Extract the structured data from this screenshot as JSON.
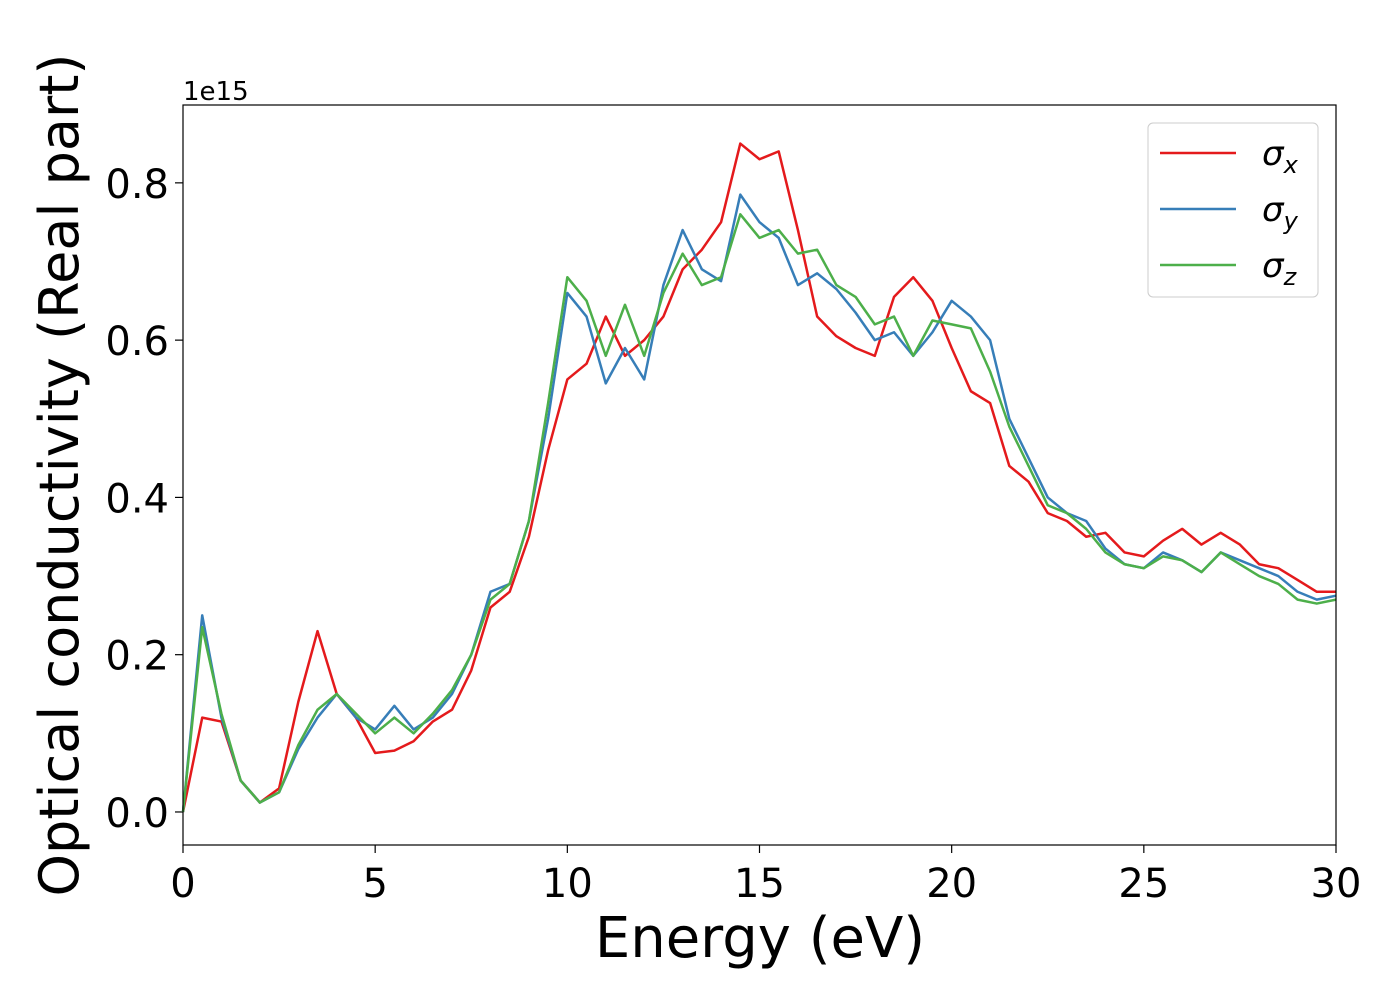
{
  "chart_data": {
    "type": "line",
    "xlabel": "Energy (eV)",
    "ylabel": "Optical conductivity (Real part)",
    "y_offset_label": "1e15",
    "xlim": [
      0,
      30
    ],
    "ylim": [
      -0.042,
      0.899
    ],
    "xticks": [
      0,
      5,
      10,
      15,
      20,
      25,
      30
    ],
    "yticks": [
      {
        "value": 0,
        "label": "0.0"
      },
      0.2,
      0.4,
      0.6,
      0.8
    ],
    "legend": "upper right",
    "x": [
      0,
      0.5,
      1,
      1.5,
      2,
      2.5,
      3,
      3.5,
      4,
      4.5,
      5,
      5.5,
      6,
      6.5,
      7,
      7.5,
      8,
      8.5,
      9,
      9.5,
      10,
      10.5,
      11,
      11.5,
      12,
      12.5,
      13,
      13.5,
      14,
      14.5,
      15,
      15.5,
      16,
      16.5,
      17,
      17.5,
      18,
      18.5,
      19,
      19.5,
      20,
      20.5,
      21,
      21.5,
      22,
      22.5,
      23,
      23.5,
      24,
      24.5,
      25,
      25.5,
      26,
      26.5,
      27,
      27.5,
      28,
      28.5,
      29,
      29.5,
      30
    ],
    "series": [
      {
        "name": "σx",
        "color": "#e41a1c",
        "values": [
          0,
          0.12,
          0.115,
          0.04,
          0.012,
          0.03,
          0.14,
          0.23,
          0.15,
          0.12,
          0.075,
          0.078,
          0.09,
          0.115,
          0.13,
          0.18,
          0.26,
          0.28,
          0.35,
          0.46,
          0.55,
          0.57,
          0.63,
          0.58,
          0.6,
          0.63,
          0.69,
          0.715,
          0.75,
          0.85,
          0.83,
          0.84,
          0.74,
          0.63,
          0.605,
          0.59,
          0.58,
          0.655,
          0.68,
          0.65,
          0.59,
          0.535,
          0.52,
          0.44,
          0.42,
          0.38,
          0.37,
          0.35,
          0.355,
          0.33,
          0.325,
          0.345,
          0.36,
          0.34,
          0.355,
          0.34,
          0.315,
          0.31,
          0.295,
          0.28,
          0.28
        ]
      },
      {
        "name": "σy",
        "color": "#377eb8",
        "values": [
          0,
          0.25,
          0.12,
          0.04,
          0.012,
          0.025,
          0.08,
          0.12,
          0.15,
          0.12,
          0.105,
          0.135,
          0.105,
          0.12,
          0.15,
          0.2,
          0.28,
          0.29,
          0.37,
          0.5,
          0.66,
          0.63,
          0.545,
          0.59,
          0.55,
          0.67,
          0.74,
          0.69,
          0.675,
          0.785,
          0.75,
          0.73,
          0.67,
          0.685,
          0.665,
          0.635,
          0.6,
          0.61,
          0.58,
          0.61,
          0.65,
          0.63,
          0.6,
          0.5,
          0.45,
          0.4,
          0.38,
          0.37,
          0.335,
          0.315,
          0.31,
          0.33,
          0.32,
          0.305,
          0.33,
          0.32,
          0.31,
          0.3,
          0.28,
          0.27,
          0.275
        ]
      },
      {
        "name": "σz",
        "color": "#4daf4a",
        "values": [
          0,
          0.235,
          0.125,
          0.04,
          0.012,
          0.025,
          0.085,
          0.13,
          0.15,
          0.125,
          0.1,
          0.12,
          0.1,
          0.125,
          0.155,
          0.2,
          0.27,
          0.29,
          0.37,
          0.52,
          0.68,
          0.65,
          0.58,
          0.645,
          0.58,
          0.66,
          0.71,
          0.67,
          0.68,
          0.76,
          0.73,
          0.74,
          0.71,
          0.715,
          0.67,
          0.655,
          0.62,
          0.63,
          0.58,
          0.625,
          0.62,
          0.615,
          0.56,
          0.49,
          0.44,
          0.39,
          0.38,
          0.36,
          0.33,
          0.315,
          0.31,
          0.325,
          0.32,
          0.305,
          0.33,
          0.315,
          0.3,
          0.29,
          0.27,
          0.265,
          0.27
        ]
      }
    ]
  }
}
